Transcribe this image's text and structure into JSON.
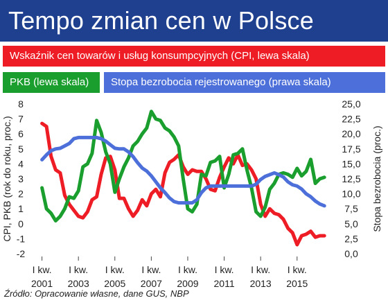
{
  "title": "Tempo zmian cen w Polsce",
  "source": "Źródło: Opracowanie własne, dane GUS, NBP",
  "chart_data": {
    "type": "line",
    "ylabel_left": "CPI, PKB (rok do roku, proc.)",
    "ylabel_right": "Stopa bezrobocia (proc.)",
    "ylim_left": [
      -2,
      8
    ],
    "ylim_right": [
      0,
      25
    ],
    "yticks_left": [
      "8",
      "7",
      "6",
      "5",
      "4",
      "3",
      "2",
      "1",
      "0",
      "-1",
      "-2"
    ],
    "yticks_right": [
      "25,0",
      "22,5",
      "20,0",
      "17,5",
      "15,0",
      "12,5",
      "10,0",
      "7,5",
      "5,0",
      "2,5",
      "0,0"
    ],
    "xticks": [
      {
        "top": "I kw.",
        "bottom": "2001",
        "x": 2001
      },
      {
        "top": "I kw.",
        "bottom": "2003",
        "x": 2003
      },
      {
        "top": "I kw.",
        "bottom": "2005",
        "x": 2005
      },
      {
        "top": "I kw.",
        "bottom": "2007",
        "x": 2007
      },
      {
        "top": "I kw.",
        "bottom": "2009",
        "x": 2009
      },
      {
        "top": "I kw.",
        "bottom": "2011",
        "x": 2011
      },
      {
        "top": "I kw.",
        "bottom": "2013",
        "x": 2013
      },
      {
        "top": "I kw.",
        "bottom": "2015",
        "x": 2015
      }
    ],
    "xlim": [
      2000.75,
      2017.1
    ],
    "series": [
      {
        "name": "Wskaźnik cen towarów i usług konsumpcyjnych (CPI, lewa skala)",
        "axis": "left",
        "color": "#ee1c25",
        "points": [
          [
            2001.0,
            6.7
          ],
          [
            2001.25,
            6.5
          ],
          [
            2001.5,
            4.5
          ],
          [
            2001.75,
            3.6
          ],
          [
            2002.0,
            3.4
          ],
          [
            2002.25,
            1.9
          ],
          [
            2002.5,
            1.3
          ],
          [
            2002.75,
            0.9
          ],
          [
            2003.0,
            0.5
          ],
          [
            2003.25,
            0.4
          ],
          [
            2003.5,
            0.8
          ],
          [
            2003.75,
            1.6
          ],
          [
            2004.0,
            1.8
          ],
          [
            2004.25,
            3.3
          ],
          [
            2004.5,
            4.4
          ],
          [
            2004.75,
            4.5
          ],
          [
            2005.0,
            3.6
          ],
          [
            2005.25,
            1.7
          ],
          [
            2005.5,
            1.7
          ],
          [
            2005.75,
            1.0
          ],
          [
            2006.0,
            0.5
          ],
          [
            2006.25,
            0.9
          ],
          [
            2006.5,
            1.6
          ],
          [
            2006.75,
            1.2
          ],
          [
            2007.0,
            2.0
          ],
          [
            2007.25,
            2.3
          ],
          [
            2007.5,
            1.8
          ],
          [
            2007.75,
            3.4
          ],
          [
            2008.0,
            4.1
          ],
          [
            2008.25,
            4.3
          ],
          [
            2008.5,
            4.6
          ],
          [
            2008.75,
            3.8
          ],
          [
            2009.0,
            3.3
          ],
          [
            2009.25,
            3.6
          ],
          [
            2009.5,
            3.5
          ],
          [
            2009.75,
            3.5
          ],
          [
            2010.0,
            3.0
          ],
          [
            2010.25,
            2.3
          ],
          [
            2010.5,
            2.2
          ],
          [
            2010.75,
            3.1
          ],
          [
            2011.0,
            3.8
          ],
          [
            2011.25,
            4.4
          ],
          [
            2011.5,
            4.0
          ],
          [
            2011.75,
            4.6
          ],
          [
            2012.0,
            3.9
          ],
          [
            2012.25,
            4.0
          ],
          [
            2012.5,
            3.6
          ],
          [
            2012.75,
            3.0
          ],
          [
            2013.0,
            1.3
          ],
          [
            2013.25,
            0.5
          ],
          [
            2013.5,
            1.0
          ],
          [
            2013.75,
            0.7
          ],
          [
            2014.0,
            0.6
          ],
          [
            2014.25,
            0.3
          ],
          [
            2014.5,
            -0.3
          ],
          [
            2014.75,
            -0.6
          ],
          [
            2015.0,
            -1.4
          ],
          [
            2015.25,
            -0.8
          ],
          [
            2015.5,
            -0.7
          ],
          [
            2015.75,
            -0.5
          ],
          [
            2016.0,
            -0.9
          ],
          [
            2016.25,
            -0.8
          ],
          [
            2016.5,
            -0.8
          ]
        ]
      },
      {
        "name": "PKB (lewa skala)",
        "axis": "left",
        "color": "#1a9e2e",
        "points": [
          [
            2001.0,
            2.4
          ],
          [
            2001.25,
            1.0
          ],
          [
            2001.5,
            0.7
          ],
          [
            2001.75,
            0.2
          ],
          [
            2002.0,
            0.5
          ],
          [
            2002.25,
            1.0
          ],
          [
            2002.5,
            1.8
          ],
          [
            2002.75,
            1.7
          ],
          [
            2003.0,
            2.2
          ],
          [
            2003.25,
            3.8
          ],
          [
            2003.5,
            4.0
          ],
          [
            2003.75,
            4.7
          ],
          [
            2004.0,
            6.9
          ],
          [
            2004.25,
            6.1
          ],
          [
            2004.5,
            4.8
          ],
          [
            2004.75,
            4.0
          ],
          [
            2005.0,
            2.1
          ],
          [
            2005.25,
            3.0
          ],
          [
            2005.5,
            3.8
          ],
          [
            2005.75,
            4.4
          ],
          [
            2006.0,
            5.2
          ],
          [
            2006.25,
            5.5
          ],
          [
            2006.5,
            6.0
          ],
          [
            2006.75,
            6.4
          ],
          [
            2007.0,
            7.5
          ],
          [
            2007.25,
            7.0
          ],
          [
            2007.5,
            6.9
          ],
          [
            2007.75,
            6.4
          ],
          [
            2008.0,
            6.2
          ],
          [
            2008.25,
            5.8
          ],
          [
            2008.5,
            5.2
          ],
          [
            2008.75,
            3.0
          ],
          [
            2009.0,
            1.0
          ],
          [
            2009.25,
            0.8
          ],
          [
            2009.5,
            1.3
          ],
          [
            2009.75,
            3.3
          ],
          [
            2010.0,
            3.2
          ],
          [
            2010.25,
            4.1
          ],
          [
            2010.5,
            4.2
          ],
          [
            2010.75,
            4.5
          ],
          [
            2011.0,
            2.4
          ],
          [
            2011.25,
            3.3
          ],
          [
            2011.5,
            4.6
          ],
          [
            2011.75,
            4.7
          ],
          [
            2012.0,
            5.0
          ],
          [
            2012.25,
            3.6
          ],
          [
            2012.5,
            2.4
          ],
          [
            2012.75,
            0.8
          ],
          [
            2013.0,
            0.5
          ],
          [
            2013.25,
            1.1
          ],
          [
            2013.5,
            2.3
          ],
          [
            2013.75,
            2.7
          ],
          [
            2014.0,
            3.3
          ],
          [
            2014.25,
            3.4
          ],
          [
            2014.5,
            3.3
          ],
          [
            2014.75,
            3.1
          ],
          [
            2015.0,
            3.7
          ],
          [
            2015.25,
            3.2
          ],
          [
            2015.5,
            3.5
          ],
          [
            2015.75,
            4.3
          ],
          [
            2016.0,
            2.7
          ],
          [
            2016.25,
            3.0
          ],
          [
            2016.5,
            3.1
          ]
        ]
      },
      {
        "name": "Stopa bezrobocia rejestrowanego (prawa skala)",
        "axis": "right",
        "color": "#4d6fd9",
        "points": [
          [
            2001.0,
            15.7
          ],
          [
            2001.25,
            16.5
          ],
          [
            2001.5,
            17.2
          ],
          [
            2001.75,
            17.5
          ],
          [
            2002.0,
            17.6
          ],
          [
            2002.25,
            18.0
          ],
          [
            2002.5,
            18.4
          ],
          [
            2002.75,
            19.2
          ],
          [
            2003.0,
            19.4
          ],
          [
            2003.25,
            19.4
          ],
          [
            2003.5,
            19.4
          ],
          [
            2003.75,
            19.4
          ],
          [
            2004.0,
            19.4
          ],
          [
            2004.25,
            19.2
          ],
          [
            2004.5,
            18.8
          ],
          [
            2004.75,
            18.2
          ],
          [
            2005.0,
            17.6
          ],
          [
            2005.25,
            17.5
          ],
          [
            2005.5,
            17.5
          ],
          [
            2005.75,
            17.0
          ],
          [
            2006.0,
            16.2
          ],
          [
            2006.25,
            15.2
          ],
          [
            2006.5,
            14.3
          ],
          [
            2006.75,
            13.8
          ],
          [
            2007.0,
            13.0
          ],
          [
            2007.25,
            12.0
          ],
          [
            2007.5,
            11.0
          ],
          [
            2007.75,
            10.2
          ],
          [
            2008.0,
            9.3
          ],
          [
            2008.25,
            8.7
          ],
          [
            2008.5,
            8.5
          ],
          [
            2008.75,
            8.5
          ],
          [
            2009.0,
            8.5
          ],
          [
            2009.25,
            8.5
          ],
          [
            2009.5,
            9.0
          ],
          [
            2009.75,
            10.2
          ],
          [
            2010.0,
            11.0
          ],
          [
            2010.25,
            11.3
          ],
          [
            2010.5,
            11.3
          ],
          [
            2010.75,
            11.3
          ],
          [
            2011.0,
            11.3
          ],
          [
            2011.25,
            11.3
          ],
          [
            2011.5,
            11.3
          ],
          [
            2011.75,
            11.3
          ],
          [
            2012.0,
            11.3
          ],
          [
            2012.25,
            11.3
          ],
          [
            2012.5,
            11.3
          ],
          [
            2012.75,
            11.6
          ],
          [
            2013.0,
            12.4
          ],
          [
            2013.25,
            12.9
          ],
          [
            2013.5,
            13.2
          ],
          [
            2013.75,
            13.5
          ],
          [
            2014.0,
            13.2
          ],
          [
            2014.25,
            12.8
          ],
          [
            2014.5,
            12.0
          ],
          [
            2014.75,
            11.5
          ],
          [
            2015.0,
            11.3
          ],
          [
            2015.25,
            10.8
          ],
          [
            2015.5,
            10.0
          ],
          [
            2015.75,
            9.5
          ],
          [
            2016.0,
            8.8
          ],
          [
            2016.25,
            8.3
          ],
          [
            2016.5,
            8.0
          ]
        ]
      }
    ]
  },
  "colors": {
    "header_bg": "#1f3f8f",
    "cpi": "#ee1c25",
    "gdp": "#1a9e2e",
    "unemployment": "#4d6fd9"
  }
}
